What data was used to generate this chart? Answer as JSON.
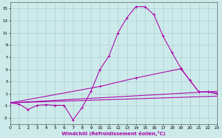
{
  "xlabel": "Windchill (Refroidissement éolien,°C)",
  "xlim": [
    0,
    23
  ],
  "ylim": [
    -4,
    16
  ],
  "yticks": [
    -3,
    -1,
    1,
    3,
    5,
    7,
    9,
    11,
    13,
    15
  ],
  "xticks": [
    0,
    1,
    2,
    3,
    4,
    5,
    6,
    7,
    8,
    9,
    10,
    11,
    12,
    13,
    14,
    15,
    16,
    17,
    18,
    19,
    20,
    21,
    22,
    23
  ],
  "background_color": "#cdeaea",
  "grid_color": "#aacece",
  "line_color": "#aa00aa",
  "line1_x": [
    0,
    1,
    2,
    3,
    4,
    5,
    6,
    7,
    8,
    9,
    10,
    11,
    12,
    13,
    14,
    15,
    16,
    17,
    18,
    19,
    20,
    21,
    22,
    23
  ],
  "line1_y": [
    -0.5,
    -0.7,
    -1.6,
    -0.9,
    -0.8,
    -0.9,
    -0.9,
    -3.3,
    -1.3,
    1.4,
    5.0,
    7.2,
    11.0,
    13.5,
    15.3,
    15.3,
    14.0,
    10.5,
    7.8,
    5.2,
    3.2,
    1.3,
    1.3,
    1.0
  ],
  "line2_x": [
    0,
    10,
    14,
    19,
    20,
    21,
    22,
    23
  ],
  "line2_y": [
    -0.5,
    2.2,
    3.6,
    5.1,
    3.2,
    1.3,
    1.3,
    1.1
  ],
  "line3_x": [
    0,
    23
  ],
  "line3_y": [
    -0.5,
    1.4
  ],
  "line4_x": [
    0,
    23
  ],
  "line4_y": [
    -0.5,
    0.6
  ]
}
